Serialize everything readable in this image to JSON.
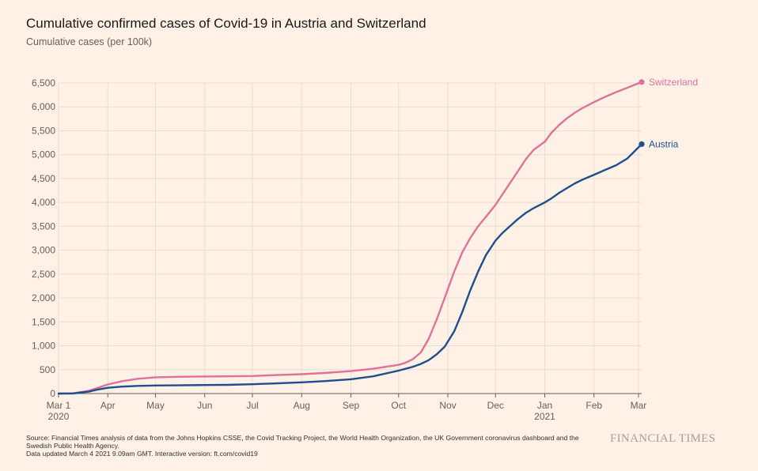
{
  "title": "Cumulative confirmed cases of Covid-19 in Austria and Switzerland",
  "subtitle": "Cumulative cases (per 100k)",
  "footer": {
    "source_line1": "Source: Financial Times analysis of data from the Johns Hopkins CSSE, the Covid Tracking Project, the World Health Organization, the UK Government coronavirus dashboard and the",
    "source_line2": "Swedish Public Health Agency.",
    "updated": "Data updated March 4 2021 9.09am GMT. Interactive version: ft.com/covid19"
  },
  "logo_text": "FINANCIAL TIMES",
  "colors": {
    "background": "#fff1e5",
    "grid": "#e9dcd1",
    "axis": "#66605c",
    "austria": "#1f4e8c",
    "switzerland": "#e0729a"
  },
  "chart_data": {
    "type": "line",
    "title": "Cumulative confirmed cases of Covid-19 in Austria and Switzerland",
    "ylabel": "Cumulative cases (per 100k)",
    "xlabel": "",
    "x_range": [
      "2020-03-01",
      "2021-03-03"
    ],
    "ylim": [
      0,
      6500
    ],
    "y_ticks": [
      0,
      500,
      1000,
      1500,
      2000,
      2500,
      3000,
      3500,
      4000,
      4500,
      5000,
      5500,
      6000,
      6500
    ],
    "y_tick_labels": [
      "0",
      "500",
      "1,000",
      "1,500",
      "2,000",
      "2,500",
      "3,000",
      "3,500",
      "4,000",
      "4,500",
      "5,000",
      "5,500",
      "6,000",
      "6,500"
    ],
    "x_ticks": [
      {
        "date": "2020-03-01",
        "label": "Mar 1",
        "sublabel": "2020"
      },
      {
        "date": "2020-04-01",
        "label": "Apr",
        "sublabel": ""
      },
      {
        "date": "2020-05-01",
        "label": "May",
        "sublabel": ""
      },
      {
        "date": "2020-06-01",
        "label": "Jun",
        "sublabel": ""
      },
      {
        "date": "2020-07-01",
        "label": "Jul",
        "sublabel": ""
      },
      {
        "date": "2020-08-01",
        "label": "Aug",
        "sublabel": ""
      },
      {
        "date": "2020-09-01",
        "label": "Sep",
        "sublabel": ""
      },
      {
        "date": "2020-10-01",
        "label": "Oct",
        "sublabel": ""
      },
      {
        "date": "2020-11-01",
        "label": "Nov",
        "sublabel": ""
      },
      {
        "date": "2020-12-01",
        "label": "Dec",
        "sublabel": ""
      },
      {
        "date": "2021-01-01",
        "label": "Jan",
        "sublabel": "2021"
      },
      {
        "date": "2021-02-01",
        "label": "Feb",
        "sublabel": ""
      },
      {
        "date": "2021-03-01",
        "label": "Mar",
        "sublabel": ""
      }
    ],
    "grid": true,
    "legend": "end-of-line labels",
    "series": [
      {
        "name": "Switzerland",
        "color": "#e0729a",
        "points": [
          [
            "2020-03-01",
            0
          ],
          [
            "2020-03-10",
            5
          ],
          [
            "2020-03-20",
            60
          ],
          [
            "2020-03-25",
            110
          ],
          [
            "2020-04-01",
            190
          ],
          [
            "2020-04-10",
            260
          ],
          [
            "2020-04-20",
            310
          ],
          [
            "2020-05-01",
            340
          ],
          [
            "2020-05-15",
            350
          ],
          [
            "2020-06-01",
            358
          ],
          [
            "2020-06-15",
            360
          ],
          [
            "2020-07-01",
            368
          ],
          [
            "2020-07-15",
            385
          ],
          [
            "2020-08-01",
            405
          ],
          [
            "2020-08-15",
            430
          ],
          [
            "2020-09-01",
            470
          ],
          [
            "2020-09-15",
            520
          ],
          [
            "2020-10-01",
            600
          ],
          [
            "2020-10-05",
            640
          ],
          [
            "2020-10-10",
            720
          ],
          [
            "2020-10-15",
            860
          ],
          [
            "2020-10-20",
            1150
          ],
          [
            "2020-10-25",
            1550
          ],
          [
            "2020-10-30",
            2000
          ],
          [
            "2020-11-05",
            2550
          ],
          [
            "2020-11-10",
            2950
          ],
          [
            "2020-11-15",
            3250
          ],
          [
            "2020-11-20",
            3500
          ],
          [
            "2020-11-25",
            3700
          ],
          [
            "2020-12-01",
            3950
          ],
          [
            "2020-12-05",
            4150
          ],
          [
            "2020-12-10",
            4400
          ],
          [
            "2020-12-15",
            4650
          ],
          [
            "2020-12-20",
            4900
          ],
          [
            "2020-12-25",
            5100
          ],
          [
            "2021-01-01",
            5270
          ],
          [
            "2021-01-05",
            5450
          ],
          [
            "2021-01-10",
            5620
          ],
          [
            "2021-01-15",
            5760
          ],
          [
            "2021-01-20",
            5880
          ],
          [
            "2021-01-25",
            5980
          ],
          [
            "2021-02-01",
            6100
          ],
          [
            "2021-02-08",
            6210
          ],
          [
            "2021-02-15",
            6310
          ],
          [
            "2021-02-22",
            6400
          ],
          [
            "2021-03-03",
            6520
          ]
        ]
      },
      {
        "name": "Austria",
        "color": "#1f4e8c",
        "points": [
          [
            "2020-03-01",
            0
          ],
          [
            "2020-03-10",
            2
          ],
          [
            "2020-03-20",
            40
          ],
          [
            "2020-03-25",
            80
          ],
          [
            "2020-04-01",
            120
          ],
          [
            "2020-04-10",
            145
          ],
          [
            "2020-04-20",
            160
          ],
          [
            "2020-05-01",
            168
          ],
          [
            "2020-05-15",
            172
          ],
          [
            "2020-06-01",
            178
          ],
          [
            "2020-06-15",
            182
          ],
          [
            "2020-07-01",
            195
          ],
          [
            "2020-07-15",
            212
          ],
          [
            "2020-08-01",
            235
          ],
          [
            "2020-08-15",
            260
          ],
          [
            "2020-09-01",
            300
          ],
          [
            "2020-09-15",
            360
          ],
          [
            "2020-10-01",
            480
          ],
          [
            "2020-10-10",
            560
          ],
          [
            "2020-10-15",
            620
          ],
          [
            "2020-10-20",
            700
          ],
          [
            "2020-10-25",
            820
          ],
          [
            "2020-10-30",
            980
          ],
          [
            "2020-11-05",
            1300
          ],
          [
            "2020-11-10",
            1700
          ],
          [
            "2020-11-15",
            2150
          ],
          [
            "2020-11-20",
            2550
          ],
          [
            "2020-11-25",
            2900
          ],
          [
            "2020-12-01",
            3200
          ],
          [
            "2020-12-05",
            3350
          ],
          [
            "2020-12-10",
            3500
          ],
          [
            "2020-12-15",
            3650
          ],
          [
            "2020-12-20",
            3780
          ],
          [
            "2020-12-25",
            3880
          ],
          [
            "2021-01-01",
            4000
          ],
          [
            "2021-01-05",
            4080
          ],
          [
            "2021-01-10",
            4200
          ],
          [
            "2021-01-15",
            4300
          ],
          [
            "2021-01-20",
            4400
          ],
          [
            "2021-01-25",
            4480
          ],
          [
            "2021-02-01",
            4580
          ],
          [
            "2021-02-08",
            4680
          ],
          [
            "2021-02-15",
            4780
          ],
          [
            "2021-02-22",
            4920
          ],
          [
            "2021-03-03",
            5220
          ]
        ]
      }
    ]
  }
}
